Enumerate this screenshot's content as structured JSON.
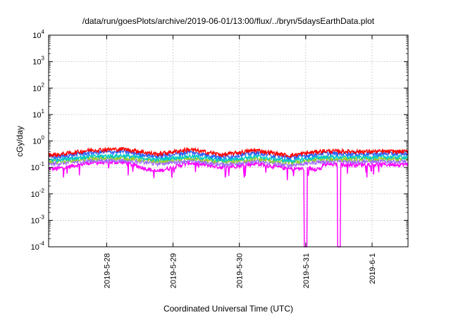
{
  "chart_data": {
    "type": "line",
    "title": "/data/run/goesPlots/archive/2019-06-01/13:00/flux/../bryn/5daysEarthData.plot",
    "xlabel": "Coordinated Universal Time (UTC)",
    "ylabel": "cGy/day",
    "yscale": "log",
    "ylim": [
      0.0001,
      10000
    ],
    "xlim": [
      "2019-05-27 03:00",
      "2019-06-01 13:00"
    ],
    "yticks": [
      {
        "base": "10",
        "exp": "-4",
        "value": 0.0001
      },
      {
        "base": "10",
        "exp": "-3",
        "value": 0.001
      },
      {
        "base": "10",
        "exp": "-2",
        "value": 0.01
      },
      {
        "base": "10",
        "exp": "-1",
        "value": 0.1
      },
      {
        "base": "10",
        "exp": "0",
        "value": 1
      },
      {
        "base": "10",
        "exp": "1",
        "value": 10
      },
      {
        "base": "10",
        "exp": "2",
        "value": 100
      },
      {
        "base": "10",
        "exp": "3",
        "value": 1000
      },
      {
        "base": "10",
        "exp": "4",
        "value": 10000
      }
    ],
    "xticks": [
      "2019-5-28",
      "2019-5-29",
      "2019-5-30",
      "2019-5-31",
      "2019-6-1"
    ],
    "grid": true,
    "legend": "none",
    "colors": [
      "#ff0000",
      "#2e64ff",
      "#00c8c8",
      "#99cc33",
      "#a06aff",
      "#ff00ff"
    ],
    "series": [
      {
        "color": "#ff0000",
        "level": 0.4,
        "x": [
          "2019-05-27 06:00",
          "2019-05-27 18:00",
          "2019-05-28 06:00",
          "2019-05-28 18:00",
          "2019-05-29 06:00",
          "2019-05-29 18:00",
          "2019-05-30 06:00",
          "2019-05-30 18:00",
          "2019-05-31 06:00",
          "2019-05-31 18:00",
          "2019-06-01 06:00"
        ],
        "values": [
          0.3,
          0.45,
          0.5,
          0.32,
          0.48,
          0.3,
          0.45,
          0.28,
          0.42,
          0.4,
          0.4
        ]
      },
      {
        "color": "#2e64ff",
        "level": 0.33,
        "x": [
          "2019-05-27 06:00",
          "2019-05-27 18:00",
          "2019-05-28 06:00",
          "2019-05-28 18:00",
          "2019-05-29 06:00",
          "2019-05-29 18:00",
          "2019-05-30 06:00",
          "2019-05-30 18:00",
          "2019-05-31 06:00",
          "2019-05-31 18:00",
          "2019-06-01 06:00"
        ],
        "values": [
          0.25,
          0.36,
          0.4,
          0.26,
          0.38,
          0.24,
          0.36,
          0.23,
          0.34,
          0.33,
          0.33
        ]
      },
      {
        "color": "#00c8c8",
        "level": 0.25,
        "x": [
          "2019-05-27 06:00",
          "2019-05-27 18:00",
          "2019-05-28 06:00",
          "2019-05-28 18:00",
          "2019-05-29 06:00",
          "2019-05-29 18:00",
          "2019-05-30 06:00",
          "2019-05-30 18:00",
          "2019-05-31 06:00",
          "2019-05-31 18:00",
          "2019-06-01 06:00"
        ],
        "values": [
          0.2,
          0.26,
          0.28,
          0.2,
          0.27,
          0.19,
          0.26,
          0.18,
          0.25,
          0.25,
          0.25
        ]
      },
      {
        "color": "#99cc33",
        "level": 0.21,
        "x": [
          "2019-05-27 06:00",
          "2019-05-27 18:00",
          "2019-05-28 06:00",
          "2019-05-28 18:00",
          "2019-05-29 06:00",
          "2019-05-29 18:00",
          "2019-05-30 06:00",
          "2019-05-30 18:00",
          "2019-05-31 06:00",
          "2019-05-31 18:00",
          "2019-06-01 06:00"
        ],
        "values": [
          0.17,
          0.22,
          0.23,
          0.17,
          0.22,
          0.16,
          0.21,
          0.15,
          0.21,
          0.21,
          0.21
        ]
      },
      {
        "color": "#a06aff",
        "level": 0.17,
        "x": [
          "2019-05-27 06:00",
          "2019-05-27 18:00",
          "2019-05-28 06:00",
          "2019-05-28 18:00",
          "2019-05-29 06:00",
          "2019-05-29 18:00",
          "2019-05-30 06:00",
          "2019-05-30 18:00",
          "2019-05-31 06:00",
          "2019-05-31 18:00",
          "2019-06-01 06:00"
        ],
        "values": [
          0.14,
          0.18,
          0.19,
          0.14,
          0.18,
          0.13,
          0.17,
          0.12,
          0.17,
          0.17,
          0.17
        ]
      },
      {
        "color": "#ff00ff",
        "level": 0.14,
        "x": [
          "2019-05-27 06:00",
          "2019-05-27 18:00",
          "2019-05-28 06:00",
          "2019-05-28 18:00",
          "2019-05-29 06:00",
          "2019-05-29 18:00",
          "2019-05-30 06:00",
          "2019-05-30 18:00",
          "2019-05-31 06:00",
          "2019-05-31 18:00",
          "2019-06-01 06:00"
        ],
        "values": [
          0.09,
          0.15,
          0.16,
          0.07,
          0.15,
          0.1,
          0.14,
          0.09,
          0.0001,
          0.13,
          0.13
        ]
      }
    ]
  }
}
